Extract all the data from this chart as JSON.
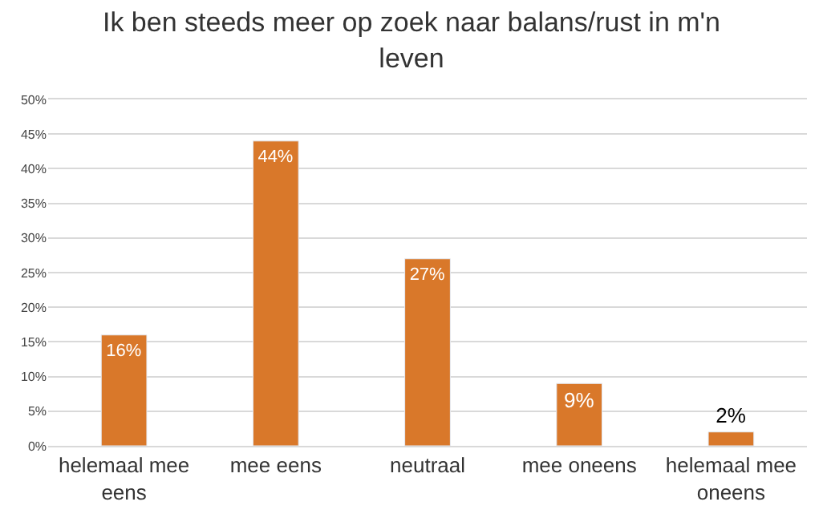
{
  "chart_data": {
    "type": "bar",
    "title": "Ik ben steeds meer op zoek naar balans/rust in m'n leven",
    "categories": [
      "helemaal mee eens",
      "mee eens",
      "neutraal",
      "mee oneens",
      "helemaal mee oneens"
    ],
    "values": [
      16,
      44,
      27,
      9,
      2
    ],
    "value_labels": [
      "16%",
      "44%",
      "27%",
      "9%",
      "2%"
    ],
    "color": "#d9782a",
    "ylim": [
      0,
      50
    ],
    "yticks": [
      {
        "value": 0,
        "label": "0%"
      },
      {
        "value": 5,
        "label": "5%"
      },
      {
        "value": 10,
        "label": "10%"
      },
      {
        "value": 15,
        "label": "15%"
      },
      {
        "value": 20,
        "label": "20%"
      },
      {
        "value": 25,
        "label": "25%"
      },
      {
        "value": 30,
        "label": "30%"
      },
      {
        "value": 35,
        "label": "35%"
      },
      {
        "value": 40,
        "label": "40%"
      },
      {
        "value": 45,
        "label": "45%"
      },
      {
        "value": 50,
        "label": "50%"
      }
    ],
    "grid": "y"
  }
}
